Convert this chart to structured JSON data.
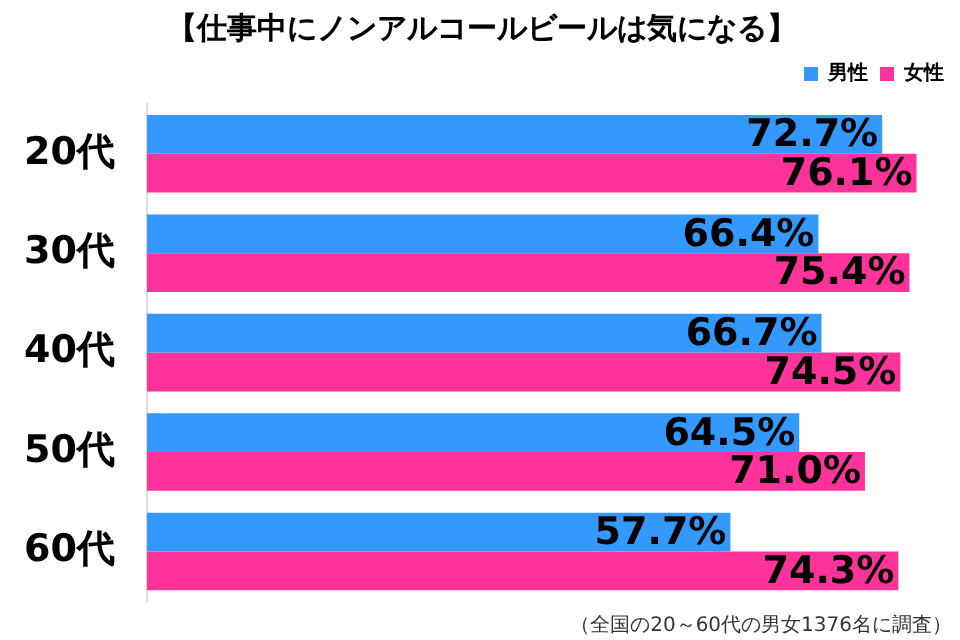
{
  "chart_data": {
    "type": "bar",
    "orientation": "horizontal",
    "title": "【仕事中にノンアルコールビールは気になる】",
    "categories": [
      "20代",
      "30代",
      "40代",
      "50代",
      "60代"
    ],
    "series": [
      {
        "name": "男性",
        "color": "#3399ff",
        "values": [
          72.7,
          66.4,
          66.7,
          64.5,
          57.7
        ],
        "value_labels": [
          "72.7%",
          "66.4%",
          "66.7%",
          "64.5%",
          "57.7%"
        ]
      },
      {
        "name": "女性",
        "color": "#ff3399",
        "values": [
          76.1,
          75.4,
          74.5,
          71.0,
          74.3
        ],
        "value_labels": [
          "76.1%",
          "75.4%",
          "74.5%",
          "71.0%",
          "74.3%"
        ]
      }
    ],
    "tick_labels": "y",
    "legend": "top right",
    "annotations": [
      "（全国の20～60代の男女1376名に調査）"
    ]
  }
}
